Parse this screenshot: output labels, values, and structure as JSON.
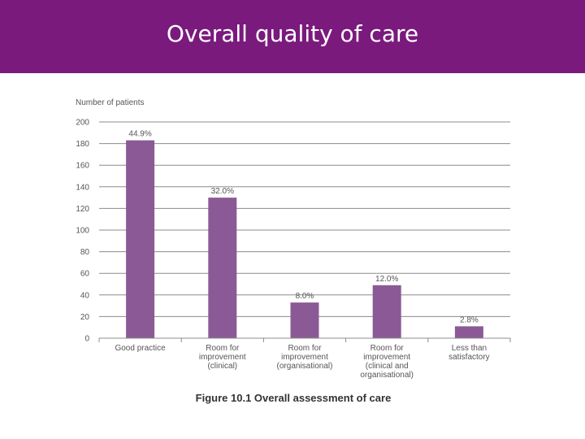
{
  "header": {
    "title": "Overall quality of care"
  },
  "colors": {
    "header_bg": "#7a1a7d",
    "bar": "#8b5a96",
    "grid": "#8c8c8c"
  },
  "chart_data": {
    "type": "bar",
    "ylabel": "Number of patients",
    "ylim": [
      0,
      200
    ],
    "yticks": [
      0,
      20,
      40,
      60,
      80,
      100,
      120,
      140,
      160,
      180,
      200
    ],
    "categories": [
      [
        "Good practice"
      ],
      [
        "Room for",
        "improvement",
        "(clinical)"
      ],
      [
        "Room for",
        "improvement",
        "(organisational)"
      ],
      [
        "Room for",
        "improvement",
        "(clinical and",
        "organisational)"
      ],
      [
        "Less than",
        "satisfactory"
      ]
    ],
    "values": [
      183,
      130,
      33,
      49,
      11
    ],
    "data_labels": [
      "44.9%",
      "32.0%",
      "8.0%",
      "12.0%",
      "2.8%"
    ],
    "caption": "Figure 10.1 Overall assessment of care",
    "grid": true
  }
}
